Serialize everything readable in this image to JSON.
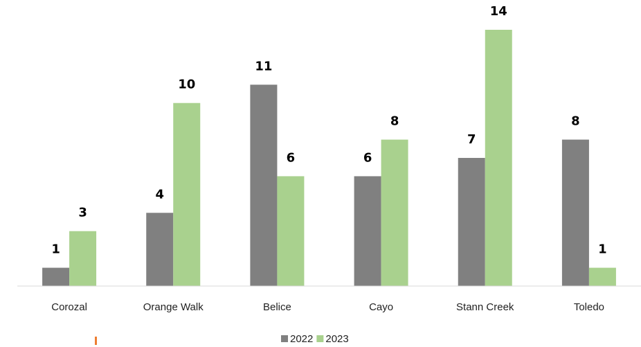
{
  "chart_data": {
    "type": "bar",
    "categories": [
      "Corozal",
      "Orange Walk",
      "Belice",
      "Cayo",
      "Stann Creek",
      "Toledo"
    ],
    "series": [
      {
        "name": "2022",
        "color": "#808080",
        "values": [
          1,
          4,
          11,
          6,
          7,
          8
        ]
      },
      {
        "name": "2023",
        "color": "#a9d18e",
        "values": [
          3,
          10,
          6,
          8,
          14,
          1
        ]
      }
    ],
    "ylim": [
      0,
      14
    ],
    "grid": false,
    "legend": "bottom"
  }
}
